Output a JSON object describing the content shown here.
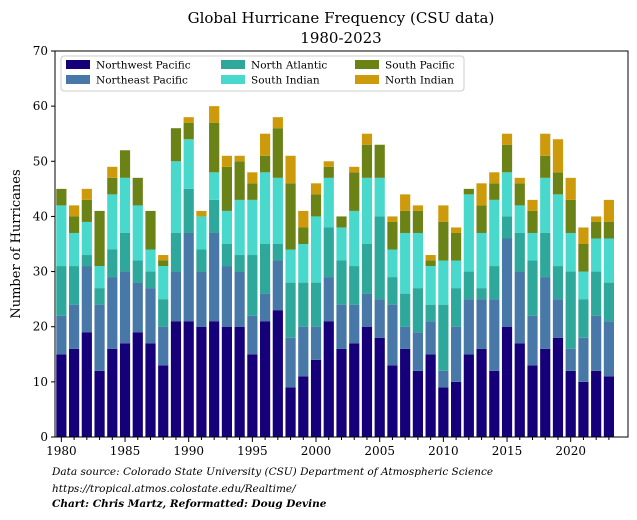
{
  "chart_data": {
    "type": "bar",
    "stacked": true,
    "title": "Global Hurricane Frequency (CSU data)",
    "subtitle": "1980-2023",
    "xlabel": "",
    "ylabel": "Number of Hurricanes",
    "xlim": [
      1979.5,
      2024.5
    ],
    "ylim": [
      0,
      70
    ],
    "x_ticks": [
      1980,
      1985,
      1990,
      1995,
      2000,
      2005,
      2010,
      2015,
      2020
    ],
    "y_ticks": [
      0,
      10,
      20,
      30,
      40,
      50,
      60,
      70
    ],
    "grid": false,
    "legend_position": "top-left",
    "x": [
      1980,
      1981,
      1982,
      1983,
      1984,
      1985,
      1986,
      1987,
      1988,
      1989,
      1990,
      1991,
      1992,
      1993,
      1994,
      1995,
      1996,
      1997,
      1998,
      1999,
      2000,
      2001,
      2002,
      2003,
      2004,
      2005,
      2006,
      2007,
      2008,
      2009,
      2010,
      2011,
      2012,
      2013,
      2014,
      2015,
      2016,
      2017,
      2018,
      2019,
      2020,
      2021,
      2022,
      2023
    ],
    "series": [
      {
        "name": "Northwest Pacific",
        "color": "#15007a",
        "values": [
          15,
          16,
          19,
          12,
          16,
          17,
          19,
          17,
          13,
          21,
          21,
          20,
          21,
          20,
          20,
          15,
          21,
          23,
          9,
          11,
          14,
          21,
          16,
          17,
          20,
          18,
          13,
          16,
          12,
          15,
          9,
          10,
          15,
          16,
          12,
          20,
          17,
          13,
          16,
          18,
          12,
          10,
          12,
          11
        ]
      },
      {
        "name": "Northeast Pacific",
        "color": "#4878a8",
        "values": [
          7,
          8,
          12,
          12,
          13,
          13,
          9,
          10,
          7,
          9,
          16,
          10,
          16,
          11,
          10,
          7,
          5,
          9,
          9,
          9,
          6,
          8,
          8,
          7,
          6,
          7,
          11,
          4,
          7,
          6,
          3,
          10,
          10,
          9,
          13,
          16,
          13,
          9,
          13,
          7,
          4,
          8,
          10,
          10
        ]
      },
      {
        "name": "North Atlantic",
        "color": "#2ea89a",
        "values": [
          9,
          7,
          2,
          3,
          5,
          7,
          4,
          3,
          5,
          7,
          8,
          4,
          6,
          4,
          3,
          11,
          9,
          3,
          10,
          8,
          8,
          9,
          8,
          7,
          9,
          15,
          5,
          6,
          8,
          3,
          12,
          7,
          5,
          2,
          6,
          4,
          7,
          10,
          8,
          6,
          14,
          7,
          8,
          7
        ]
      },
      {
        "name": "South Indian",
        "color": "#48d8cc",
        "values": [
          11,
          6,
          6,
          4,
          10,
          10,
          10,
          4,
          6,
          13,
          9,
          6,
          5,
          6,
          10,
          10,
          13,
          12,
          6,
          7,
          12,
          9,
          6,
          10,
          12,
          7,
          5,
          11,
          10,
          7,
          8,
          5,
          14,
          10,
          12,
          8,
          5,
          5,
          10,
          13,
          7,
          5,
          6,
          8
        ]
      },
      {
        "name": "South Pacific",
        "color": "#6a8216",
        "values": [
          3,
          3,
          4,
          10,
          3,
          5,
          5,
          7,
          1,
          6,
          3,
          0,
          9,
          8,
          7,
          3,
          3,
          9,
          12,
          3,
          4,
          2,
          2,
          7,
          6,
          6,
          5,
          4,
          4,
          1,
          7,
          5,
          1,
          5,
          3,
          5,
          4,
          4,
          4,
          4,
          6,
          5,
          3,
          3
        ]
      },
      {
        "name": "North Indian",
        "color": "#cc9a0a",
        "values": [
          0,
          2,
          2,
          0,
          2,
          0,
          0,
          0,
          1,
          0,
          1,
          1,
          3,
          2,
          1,
          2,
          4,
          2,
          5,
          3,
          2,
          1,
          0,
          1,
          2,
          0,
          1,
          3,
          1,
          1,
          3,
          1,
          0,
          4,
          2,
          2,
          1,
          2,
          4,
          6,
          4,
          3,
          1,
          4
        ]
      }
    ]
  },
  "footer": {
    "line1": "Data source: Colorado State University (CSU) Department of Atmospheric Science",
    "line2": "https://tropical.atmos.colostate.edu/Realtime/",
    "line3": "Chart: Chris Martz, Reformatted: Doug Devine"
  }
}
